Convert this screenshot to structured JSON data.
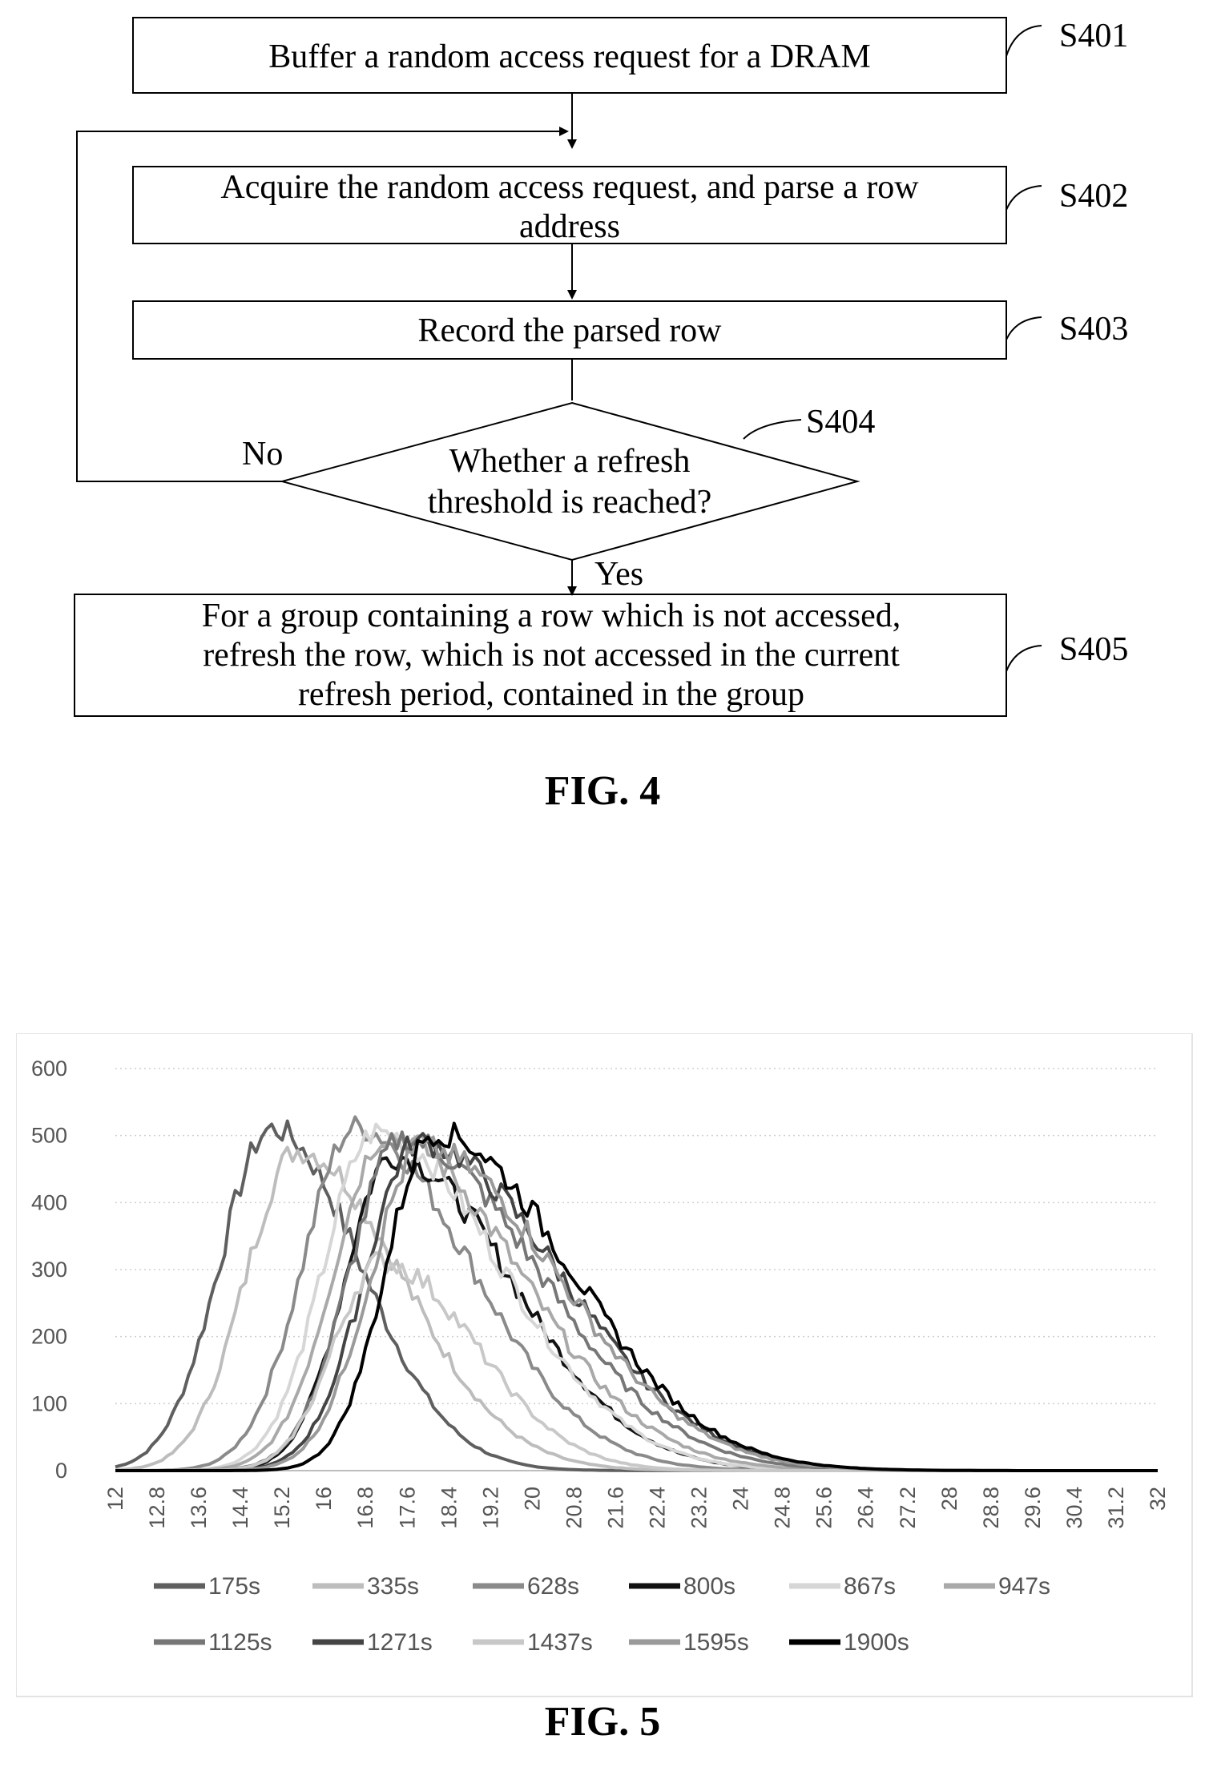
{
  "fig4": {
    "steps": [
      {
        "id": "S401",
        "lines": [
          "Buffer a random access request for a DRAM"
        ]
      },
      {
        "id": "S402",
        "lines": [
          "Acquire the random access request, and parse a row",
          "address"
        ]
      },
      {
        "id": "S403",
        "lines": [
          "Record the parsed row"
        ]
      },
      {
        "id": "S404",
        "lines": [
          "Whether a refresh",
          "threshold is reached?"
        ]
      },
      {
        "id": "S405",
        "lines": [
          "For a group containing a row which is not accessed,",
          "refresh the row, which is not accessed in the current",
          "refresh period, contained in the group"
        ]
      }
    ],
    "no_label": "No",
    "yes_label": "Yes",
    "caption": "FIG. 4"
  },
  "fig5": {
    "caption": "FIG. 5"
  },
  "chart_data": {
    "type": "line",
    "title": "",
    "xlabel": "",
    "ylabel": "",
    "ylim": [
      0,
      600
    ],
    "xlim": [
      12,
      32
    ],
    "yticks": [
      0,
      100,
      200,
      300,
      400,
      500,
      600
    ],
    "xticks": [
      "12",
      "12.8",
      "13.6",
      "14.4",
      "15.2",
      "16",
      "16.8",
      "17.6",
      "18.4",
      "19.2",
      "20",
      "20.8",
      "21.6",
      "22.4",
      "23.2",
      "24",
      "24.8",
      "25.6",
      "26.4",
      "27.2",
      "28",
      "28.8",
      "29.6",
      "30.4",
      "31.2",
      "32"
    ],
    "grid": "horizontal dotted",
    "legend": "bottom",
    "series": [
      {
        "name": "175s",
        "color": "#5f5f5f",
        "peak_x": 15.0,
        "peak_y": 510,
        "left_w": 1.0,
        "right_w": 1.7
      },
      {
        "name": "335s",
        "color": "#bdbdbd",
        "peak_x": 15.5,
        "peak_y": 478,
        "left_w": 1.0,
        "right_w": 2.0
      },
      {
        "name": "628s",
        "color": "#8a8a8a",
        "peak_x": 16.6,
        "peak_y": 512,
        "left_w": 1.0,
        "right_w": 2.2
      },
      {
        "name": "800s",
        "color": "#111111",
        "peak_x": 17.3,
        "peak_y": 470,
        "left_w": 0.9,
        "right_w": 2.3
      },
      {
        "name": "867s",
        "color": "#d6d6d6",
        "peak_x": 17.0,
        "peak_y": 505,
        "left_w": 1.0,
        "right_w": 2.4
      },
      {
        "name": "947s",
        "color": "#a9a9a9",
        "peak_x": 17.2,
        "peak_y": 500,
        "left_w": 1.0,
        "right_w": 2.5
      },
      {
        "name": "1125s",
        "color": "#777777",
        "peak_x": 17.5,
        "peak_y": 495,
        "left_w": 1.0,
        "right_w": 2.6
      },
      {
        "name": "1271s",
        "color": "#444444",
        "peak_x": 17.8,
        "peak_y": 490,
        "left_w": 1.0,
        "right_w": 2.7
      },
      {
        "name": "1437s",
        "color": "#c8c8c8",
        "peak_x": 17.1,
        "peak_y": 312,
        "left_w": 0.9,
        "right_w": 1.8
      },
      {
        "name": "1595s",
        "color": "#9a9a9a",
        "peak_x": 17.9,
        "peak_y": 480,
        "left_w": 1.0,
        "right_w": 2.6
      },
      {
        "name": "1900s",
        "color": "#000000",
        "peak_x": 18.1,
        "peak_y": 505,
        "left_w": 0.9,
        "right_w": 2.6
      }
    ]
  }
}
